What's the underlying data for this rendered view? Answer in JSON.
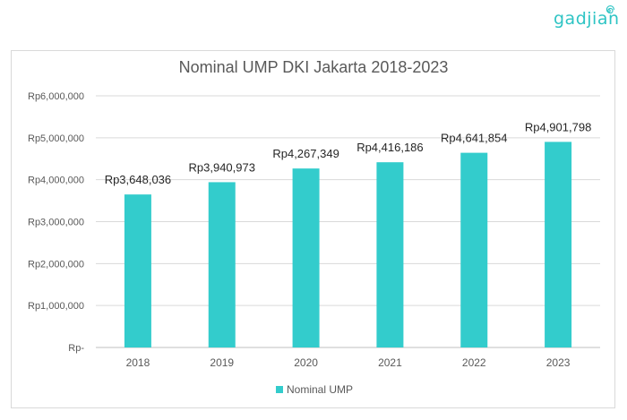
{
  "brand": {
    "logo_text": "gadjian",
    "accent_color": "#2ec4c4"
  },
  "chart_data": {
    "type": "bar",
    "title": "Nominal UMP DKI Jakarta 2018-2023",
    "categories": [
      "2018",
      "2019",
      "2020",
      "2021",
      "2022",
      "2023"
    ],
    "series": [
      {
        "name": "Nominal UMP",
        "color": "#33cccc",
        "values": [
          3648036,
          3940973,
          4267349,
          4416186,
          4641854,
          4901798
        ],
        "labels": [
          "Rp3,648,036",
          "Rp3,940,973",
          "Rp4,267,349",
          "Rp4,416,186",
          "Rp4,641,854",
          "Rp4,901,798"
        ]
      }
    ],
    "ylim": [
      0,
      6000000
    ],
    "yticks": [
      0,
      1000000,
      2000000,
      3000000,
      4000000,
      5000000,
      6000000
    ],
    "ytick_labels": [
      "Rp-",
      "Rp1,000,000",
      "Rp2,000,000",
      "Rp3,000,000",
      "Rp4,000,000",
      "Rp5,000,000",
      "Rp6,000,000"
    ],
    "grid": true,
    "legend_position": "bottom",
    "xlabel": "",
    "ylabel": ""
  }
}
